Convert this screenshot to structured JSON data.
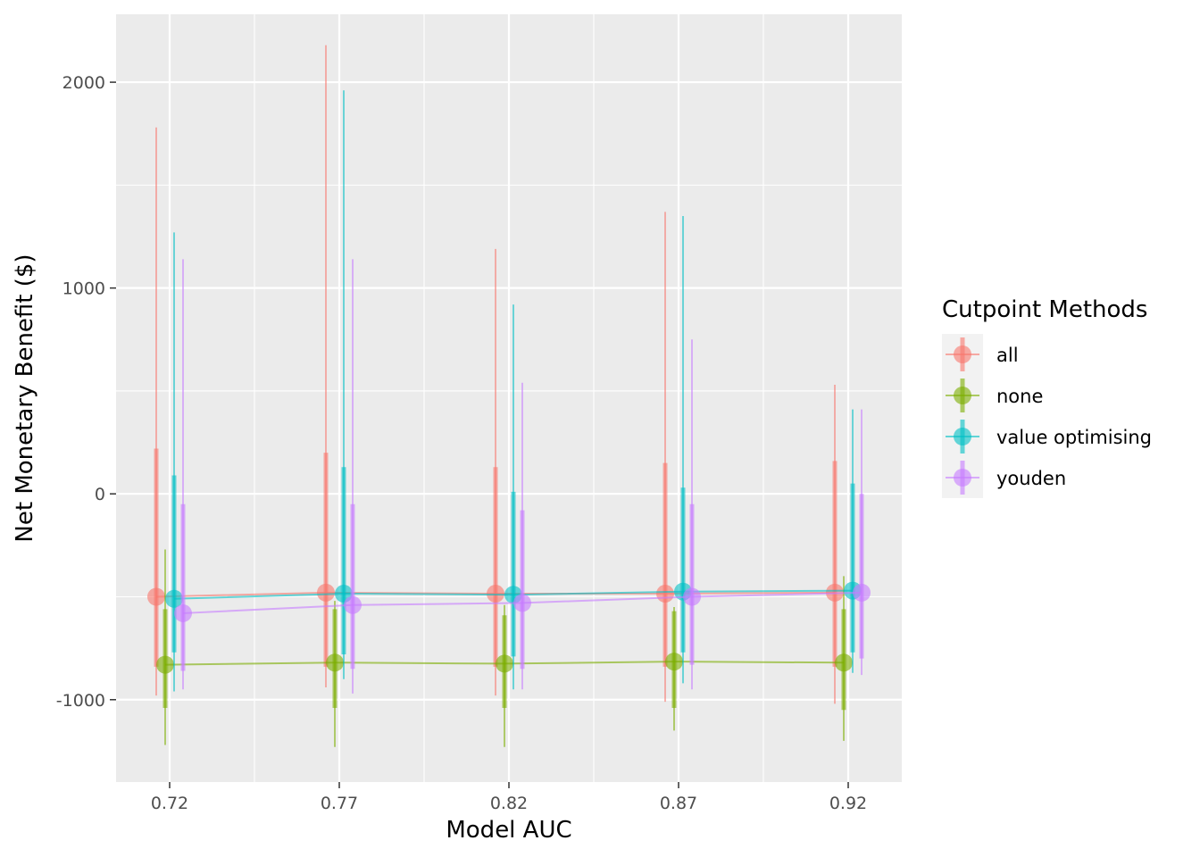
{
  "chart_data": {
    "type": "line",
    "title": "",
    "xlabel": "Model AUC",
    "ylabel": "Net Monetary Benefit ($)",
    "categories": [
      "0.72",
      "0.77",
      "0.82",
      "0.87",
      "0.92"
    ],
    "ylim": [
      -1400,
      2330
    ],
    "yticks": [
      -1000,
      0,
      1000,
      2000
    ],
    "ytick_labels": [
      "-1000",
      "0",
      "1000",
      "2000"
    ],
    "grid": true,
    "legend": {
      "title": "Cutpoint Methods",
      "position": "right"
    },
    "series": [
      {
        "name": "all",
        "color": "#F8766D",
        "median": [
          -500,
          -480,
          -485,
          -485,
          -480
        ],
        "inner": [
          [
            -840,
            220
          ],
          [
            -840,
            200
          ],
          [
            -840,
            130
          ],
          [
            -840,
            150
          ],
          [
            -840,
            160
          ]
        ],
        "outer": [
          [
            -980,
            1780
          ],
          [
            -940,
            2180
          ],
          [
            -980,
            1190
          ],
          [
            -1010,
            1370
          ],
          [
            -1020,
            530
          ]
        ]
      },
      {
        "name": "none",
        "color": "#7CAE00",
        "median": [
          -830,
          -820,
          -825,
          -815,
          -820
        ],
        "inner": [
          [
            -1040,
            -560
          ],
          [
            -1040,
            -560
          ],
          [
            -1040,
            -590
          ],
          [
            -1040,
            -570
          ],
          [
            -1050,
            -560
          ]
        ],
        "outer": [
          [
            -1220,
            -270
          ],
          [
            -1230,
            -520
          ],
          [
            -1230,
            -540
          ],
          [
            -1150,
            -550
          ],
          [
            -1200,
            -400
          ]
        ]
      },
      {
        "name": "value optimising",
        "color": "#00BFC4",
        "median": [
          -510,
          -485,
          -490,
          -475,
          -470
        ],
        "inner": [
          [
            -770,
            90
          ],
          [
            -780,
            130
          ],
          [
            -790,
            10
          ],
          [
            -770,
            30
          ],
          [
            -770,
            50
          ]
        ],
        "outer": [
          [
            -960,
            1270
          ],
          [
            -900,
            1960
          ],
          [
            -950,
            920
          ],
          [
            -920,
            1350
          ],
          [
            -870,
            410
          ]
        ]
      },
      {
        "name": "youden",
        "color": "#C77CFF",
        "median": [
          -580,
          -540,
          -530,
          -500,
          -480
        ],
        "inner": [
          [
            -860,
            -50
          ],
          [
            -850,
            -50
          ],
          [
            -850,
            -80
          ],
          [
            -830,
            -50
          ],
          [
            -800,
            0
          ]
        ],
        "outer": [
          [
            -950,
            1140
          ],
          [
            -970,
            1140
          ],
          [
            -950,
            540
          ],
          [
            -950,
            750
          ],
          [
            -880,
            410
          ]
        ]
      }
    ]
  }
}
